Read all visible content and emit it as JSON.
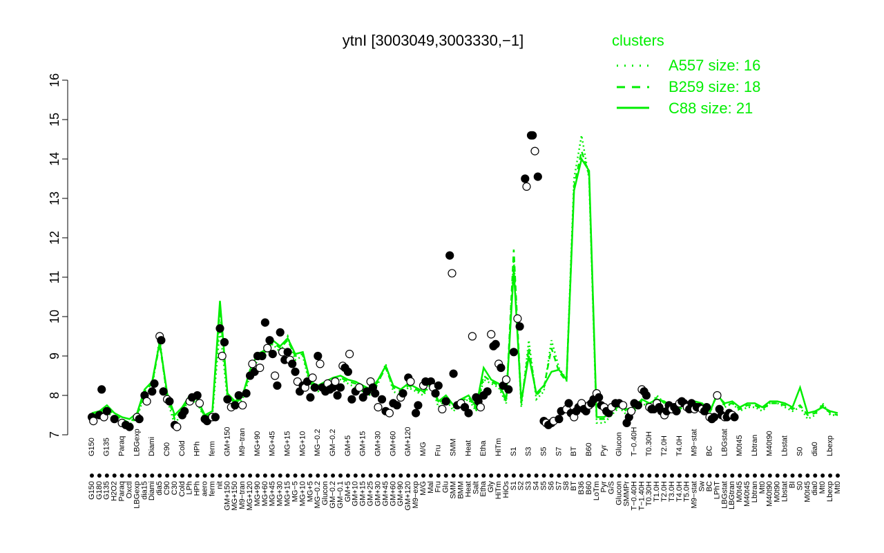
{
  "chart_data": {
    "type": "line",
    "title": "ytnI [3003049,3003330,−1]",
    "xlabel": "",
    "ylabel": "",
    "ylim": [
      7,
      16
    ],
    "yticks": [
      7,
      8,
      9,
      10,
      11,
      12,
      13,
      14,
      15,
      16
    ],
    "grid": false,
    "legend": {
      "title": "clusters",
      "placement": "top-right",
      "entries": [
        {
          "label": "A557 size: 16",
          "style": "dotted"
        },
        {
          "label": "B259 size: 18",
          "style": "dashed"
        },
        {
          "label": "C88 size: 21",
          "style": "solid"
        }
      ]
    },
    "line_color": "#00ee00",
    "x_tick_labels": [
      "G150",
      "G180",
      "G135",
      "H2O2",
      "Paraq",
      "Oxctl",
      "LBGexp",
      "dia15",
      "Diami",
      "dia5",
      "C90",
      "C30",
      "Cold",
      "LPh",
      "HPh",
      "aero",
      "ferm",
      "nit",
      "GM+150",
      "MG+150",
      "M9−tran",
      "MG+120",
      "MG+90",
      "MG+60",
      "MG+45",
      "MG+30",
      "MG+15",
      "MG−5",
      "MG+10",
      "MG+5",
      "MG−0.2",
      "Glucon",
      "GM−0.2",
      "GM−0.1",
      "GM+5",
      "GM+10",
      "GM+15",
      "GM+25",
      "GM+30",
      "GM+45",
      "GM+60",
      "GM+90",
      "GM+120",
      "M9−exp",
      "M/G",
      "Mal",
      "Fru",
      "Glu",
      "SMM",
      "BMM",
      "Heat",
      "Salt",
      "Etha",
      "Gly",
      "HiTm",
      "HiOs",
      "S1",
      "S2",
      "S3",
      "S4",
      "S5",
      "S6",
      "S7",
      "S8",
      "BT",
      "B36",
      "B60",
      "LoTm",
      "Pyr",
      "G/S",
      "Glucon",
      "SMMPr",
      "T−0.40H",
      "T−1.40H",
      "T0.30H",
      "T1.0H",
      "T2.0H",
      "T3.0H",
      "T4.0H",
      "T5.0H",
      "M9−stat",
      "Sw",
      "BC",
      "LPhT",
      "LBGstat",
      "LBGtran",
      "M0t45",
      "M40t45",
      "Lbtran",
      "Mt0",
      "M40t90",
      "M0t90",
      "Lbstat",
      "BI",
      "S0",
      "M0t45",
      "dia0",
      "Mt0",
      "Lbexp",
      "Mt0"
    ],
    "x": [
      1,
      2,
      3,
      4,
      5,
      6,
      7,
      8,
      9,
      10,
      11,
      12,
      13,
      14,
      15,
      16,
      17,
      18,
      19,
      20,
      21,
      22,
      23,
      24,
      25,
      26,
      27,
      28,
      29,
      30,
      31,
      32,
      33,
      34,
      35,
      36,
      37,
      38,
      39,
      40,
      41,
      42,
      43,
      44,
      45,
      46,
      47,
      48,
      49,
      50,
      51,
      52,
      53,
      54,
      55,
      56,
      57,
      58,
      59,
      60,
      61,
      62,
      63,
      64,
      65,
      66,
      67,
      68,
      69,
      70,
      71,
      72,
      73,
      74,
      75,
      76,
      77,
      78,
      79,
      80,
      81,
      82,
      83,
      84,
      85,
      86,
      87,
      88,
      89,
      90,
      91,
      92,
      93,
      94,
      95,
      96,
      97,
      98,
      99,
      100
    ],
    "series": [
      {
        "values": [
          7.4,
          7.5,
          7.6,
          7.4,
          7.3,
          7.25,
          7.45,
          8.0,
          8.2,
          9.45,
          7.9,
          7.25,
          7.6,
          7.9,
          7.8,
          7.4,
          7.5,
          9.7,
          7.9,
          7.7,
          7.9,
          8.5,
          8.9,
          9.0,
          9.3,
          9.1,
          9.5,
          8.9,
          9.0,
          8.2,
          8.1,
          8.2,
          8.3,
          8.4,
          8.3,
          8.2,
          8.1,
          8.0,
          8.3,
          8.8,
          8.1,
          8.0,
          8.2,
          8.1,
          8.0,
          8.3,
          7.7,
          7.9,
          7.6,
          7.8,
          7.9,
          7.6,
          8.4,
          8.3,
          8.2,
          7.8,
          11.5,
          7.7,
          9.4,
          7.9,
          8.1,
          9.4,
          8.7,
          8.4,
          13.5,
          14.6,
          13.5,
          7.3,
          7.3,
          7.5,
          7.7,
          7.5,
          7.6,
          7.8,
          7.7,
          8.0,
          7.8,
          7.6,
          7.6,
          7.7,
          7.8,
          7.7,
          7.5,
          8.1,
          7.7,
          7.8,
          7.6,
          7.7,
          7.7,
          7.6,
          7.8,
          7.8,
          7.7,
          7.6,
          7.7,
          7.4,
          7.5,
          7.8,
          7.5,
          7.5
        ]
      },
      {
        "values": [
          7.5,
          7.55,
          7.7,
          7.5,
          7.4,
          7.3,
          7.5,
          8.1,
          8.3,
          9.3,
          8.0,
          7.4,
          7.65,
          7.95,
          7.85,
          7.45,
          7.55,
          10.2,
          8.0,
          7.8,
          7.95,
          8.6,
          9.0,
          9.1,
          9.35,
          9.2,
          9.4,
          9.0,
          9.05,
          8.3,
          8.2,
          8.3,
          8.4,
          8.45,
          8.35,
          8.3,
          8.2,
          8.1,
          8.35,
          8.7,
          8.2,
          8.1,
          8.25,
          8.15,
          8.05,
          8.35,
          7.8,
          7.95,
          7.7,
          7.85,
          7.95,
          7.65,
          8.5,
          8.35,
          8.25,
          7.85,
          11.7,
          7.8,
          9.2,
          8.0,
          8.2,
          9.2,
          8.6,
          8.35,
          13.3,
          14.2,
          13.6,
          7.4,
          7.4,
          7.55,
          7.75,
          7.6,
          7.65,
          7.85,
          7.75,
          7.95,
          7.8,
          7.65,
          7.65,
          7.75,
          7.8,
          7.75,
          7.55,
          8.05,
          7.75,
          7.8,
          7.65,
          7.75,
          7.75,
          7.65,
          7.8,
          7.8,
          7.75,
          7.65,
          7.75,
          7.5,
          7.55,
          7.75,
          7.55,
          7.5
        ]
      },
      {
        "values": [
          7.55,
          7.6,
          7.75,
          7.55,
          7.45,
          7.4,
          7.55,
          8.15,
          8.35,
          9.35,
          8.05,
          7.5,
          7.7,
          8.0,
          7.9,
          7.5,
          7.6,
          10.4,
          8.05,
          7.85,
          8.0,
          8.65,
          9.05,
          9.15,
          9.4,
          9.25,
          9.45,
          9.05,
          9.1,
          8.35,
          8.25,
          8.35,
          8.45,
          8.5,
          8.4,
          8.35,
          8.25,
          8.15,
          8.4,
          8.75,
          8.25,
          8.15,
          8.3,
          8.2,
          8.1,
          8.4,
          7.85,
          8.0,
          7.75,
          7.9,
          8.0,
          7.7,
          8.7,
          8.4,
          8.3,
          7.9,
          11.2,
          7.85,
          9.0,
          8.05,
          8.25,
          8.6,
          8.65,
          8.4,
          13.2,
          14.0,
          13.7,
          7.45,
          7.45,
          7.6,
          7.8,
          7.65,
          7.7,
          7.9,
          7.8,
          7.9,
          7.85,
          7.7,
          7.7,
          7.8,
          7.85,
          7.8,
          7.6,
          8.0,
          7.8,
          7.85,
          7.7,
          7.8,
          7.8,
          7.7,
          7.85,
          7.85,
          7.8,
          7.7,
          8.2,
          7.55,
          7.6,
          7.7,
          7.6,
          7.55
        ]
      }
    ],
    "points": [
      {
        "x": 1,
        "y": 7.45
      },
      {
        "x": 1.2,
        "y": 7.35
      },
      {
        "x": 2,
        "y": 7.5
      },
      {
        "x": 2.3,
        "y": 8.15
      },
      {
        "x": 2.6,
        "y": 7.45
      },
      {
        "x": 3,
        "y": 7.6
      },
      {
        "x": 4,
        "y": 7.4
      },
      {
        "x": 5,
        "y": 7.3
      },
      {
        "x": 5.5,
        "y": 7.25
      },
      {
        "x": 6,
        "y": 7.2
      },
      {
        "x": 7,
        "y": 7.45
      },
      {
        "x": 7.3,
        "y": 7.4
      },
      {
        "x": 8,
        "y": 8.0
      },
      {
        "x": 8.3,
        "y": 7.85
      },
      {
        "x": 9,
        "y": 8.1
      },
      {
        "x": 9.3,
        "y": 8.3
      },
      {
        "x": 10,
        "y": 9.5
      },
      {
        "x": 10.2,
        "y": 9.4
      },
      {
        "x": 10.5,
        "y": 8.1
      },
      {
        "x": 11,
        "y": 7.9
      },
      {
        "x": 11.3,
        "y": 7.85
      },
      {
        "x": 12,
        "y": 7.25
      },
      {
        "x": 12.3,
        "y": 7.2
      },
      {
        "x": 13,
        "y": 7.5
      },
      {
        "x": 13.3,
        "y": 7.6
      },
      {
        "x": 14,
        "y": 7.85
      },
      {
        "x": 14.3,
        "y": 7.95
      },
      {
        "x": 15,
        "y": 8.0
      },
      {
        "x": 15.3,
        "y": 7.8
      },
      {
        "x": 16,
        "y": 7.4
      },
      {
        "x": 16.3,
        "y": 7.35
      },
      {
        "x": 17,
        "y": 7.45
      },
      {
        "x": 17.4,
        "y": 7.45
      },
      {
        "x": 18,
        "y": 9.7
      },
      {
        "x": 18.3,
        "y": 9.0
      },
      {
        "x": 18.6,
        "y": 9.35
      },
      {
        "x": 19,
        "y": 7.9
      },
      {
        "x": 19.5,
        "y": 7.7
      },
      {
        "x": 20,
        "y": 7.75
      },
      {
        "x": 20.5,
        "y": 8.0
      },
      {
        "x": 21,
        "y": 7.75
      },
      {
        "x": 21.5,
        "y": 8.05
      },
      {
        "x": 22,
        "y": 8.5
      },
      {
        "x": 22.3,
        "y": 8.8
      },
      {
        "x": 22.6,
        "y": 8.6
      },
      {
        "x": 23,
        "y": 9.0
      },
      {
        "x": 23.3,
        "y": 8.7
      },
      {
        "x": 23.6,
        "y": 9.0
      },
      {
        "x": 24,
        "y": 9.85
      },
      {
        "x": 24.3,
        "y": 9.2
      },
      {
        "x": 24.6,
        "y": 9.4
      },
      {
        "x": 25,
        "y": 9.05
      },
      {
        "x": 25.3,
        "y": 8.5
      },
      {
        "x": 25.6,
        "y": 8.25
      },
      {
        "x": 26,
        "y": 9.6
      },
      {
        "x": 26.3,
        "y": 9.1
      },
      {
        "x": 26.6,
        "y": 8.9
      },
      {
        "x": 27,
        "y": 9.1
      },
      {
        "x": 27.3,
        "y": 8.9
      },
      {
        "x": 27.6,
        "y": 8.8
      },
      {
        "x": 28,
        "y": 8.6
      },
      {
        "x": 28.3,
        "y": 8.35
      },
      {
        "x": 28.6,
        "y": 8.1
      },
      {
        "x": 29,
        "y": 8.25
      },
      {
        "x": 29.3,
        "y": 8.2
      },
      {
        "x": 29.6,
        "y": 8.35
      },
      {
        "x": 30,
        "y": 7.95
      },
      {
        "x": 30.3,
        "y": 8.45
      },
      {
        "x": 30.6,
        "y": 8.2
      },
      {
        "x": 31,
        "y": 9.0
      },
      {
        "x": 31.3,
        "y": 8.8
      },
      {
        "x": 31.6,
        "y": 8.2
      },
      {
        "x": 32,
        "y": 8.1
      },
      {
        "x": 32.3,
        "y": 8.3
      },
      {
        "x": 32.6,
        "y": 8.15
      },
      {
        "x": 33,
        "y": 8.2
      },
      {
        "x": 33.3,
        "y": 8.35
      },
      {
        "x": 33.6,
        "y": 8.0
      },
      {
        "x": 34,
        "y": 8.2
      },
      {
        "x": 34.3,
        "y": 8.75
      },
      {
        "x": 34.6,
        "y": 8.7
      },
      {
        "x": 35,
        "y": 8.6
      },
      {
        "x": 35.2,
        "y": 9.05
      },
      {
        "x": 35.5,
        "y": 7.9
      },
      {
        "x": 36,
        "y": 8.1
      },
      {
        "x": 36.5,
        "y": 8.2
      },
      {
        "x": 37,
        "y": 7.95
      },
      {
        "x": 37.5,
        "y": 8.1
      },
      {
        "x": 38,
        "y": 8.35
      },
      {
        "x": 38.3,
        "y": 8.2
      },
      {
        "x": 38.6,
        "y": 8.05
      },
      {
        "x": 39,
        "y": 7.7
      },
      {
        "x": 39.5,
        "y": 7.9
      },
      {
        "x": 40,
        "y": 7.6
      },
      {
        "x": 40.5,
        "y": 7.55
      },
      {
        "x": 41,
        "y": 7.8
      },
      {
        "x": 41.5,
        "y": 7.75
      },
      {
        "x": 42,
        "y": 7.95
      },
      {
        "x": 42.3,
        "y": 8.05
      },
      {
        "x": 43,
        "y": 8.45
      },
      {
        "x": 43.3,
        "y": 8.35
      },
      {
        "x": 44,
        "y": 7.55
      },
      {
        "x": 44.3,
        "y": 7.75
      },
      {
        "x": 45,
        "y": 8.25
      },
      {
        "x": 45.3,
        "y": 8.35
      },
      {
        "x": 46,
        "y": 8.35
      },
      {
        "x": 46.3,
        "y": 8.2
      },
      {
        "x": 46.6,
        "y": 8.05
      },
      {
        "x": 47,
        "y": 8.25
      },
      {
        "x": 47.5,
        "y": 7.65
      },
      {
        "x": 48,
        "y": 7.85
      },
      {
        "x": 48.5,
        "y": 11.55
      },
      {
        "x": 48.8,
        "y": 11.1
      },
      {
        "x": 49,
        "y": 8.55
      },
      {
        "x": 49.5,
        "y": 7.75
      },
      {
        "x": 50,
        "y": 7.8
      },
      {
        "x": 50.5,
        "y": 7.7
      },
      {
        "x": 51,
        "y": 7.55
      },
      {
        "x": 51.5,
        "y": 9.5
      },
      {
        "x": 52,
        "y": 7.95
      },
      {
        "x": 52.3,
        "y": 7.85
      },
      {
        "x": 52.6,
        "y": 7.7
      },
      {
        "x": 53,
        "y": 8.0
      },
      {
        "x": 53.5,
        "y": 8.1
      },
      {
        "x": 54,
        "y": 9.55
      },
      {
        "x": 54.3,
        "y": 9.25
      },
      {
        "x": 54.6,
        "y": 9.3
      },
      {
        "x": 55,
        "y": 8.8
      },
      {
        "x": 55.3,
        "y": 8.7
      },
      {
        "x": 55.6,
        "y": 8.25
      },
      {
        "x": 56,
        "y": 8.4
      },
      {
        "x": 56.3,
        "y": 8.15
      },
      {
        "x": 57,
        "y": 9.1
      },
      {
        "x": 57.5,
        "y": 9.95
      },
      {
        "x": 57.8,
        "y": 9.75
      },
      {
        "x": 58.5,
        "y": 13.5
      },
      {
        "x": 58.7,
        "y": 13.3
      },
      {
        "x": 59.3,
        "y": 14.6
      },
      {
        "x": 59.5,
        "y": 14.6
      },
      {
        "x": 59.8,
        "y": 14.2
      },
      {
        "x": 60.2,
        "y": 13.55
      },
      {
        "x": 61,
        "y": 7.35
      },
      {
        "x": 61.3,
        "y": 7.3
      },
      {
        "x": 61.6,
        "y": 7.25
      },
      {
        "x": 62,
        "y": 7.3
      },
      {
        "x": 62.3,
        "y": 7.35
      },
      {
        "x": 63,
        "y": 7.4
      },
      {
        "x": 63.3,
        "y": 7.6
      },
      {
        "x": 64,
        "y": 7.65
      },
      {
        "x": 64.3,
        "y": 7.8
      },
      {
        "x": 64.6,
        "y": 7.55
      },
      {
        "x": 65,
        "y": 7.45
      },
      {
        "x": 65.3,
        "y": 7.6
      },
      {
        "x": 65.6,
        "y": 7.7
      },
      {
        "x": 66,
        "y": 7.8
      },
      {
        "x": 66.3,
        "y": 7.65
      },
      {
        "x": 66.6,
        "y": 7.6
      },
      {
        "x": 67,
        "y": 7.75
      },
      {
        "x": 67.3,
        "y": 7.8
      },
      {
        "x": 67.6,
        "y": 7.9
      },
      {
        "x": 68,
        "y": 8.05
      },
      {
        "x": 68.3,
        "y": 7.95
      },
      {
        "x": 68.6,
        "y": 7.75
      },
      {
        "x": 69,
        "y": 7.7
      },
      {
        "x": 69.3,
        "y": 7.6
      },
      {
        "x": 69.6,
        "y": 7.55
      },
      {
        "x": 70,
        "y": 7.7
      },
      {
        "x": 70.5,
        "y": 7.8
      },
      {
        "x": 71,
        "y": 7.8
      },
      {
        "x": 71.5,
        "y": 7.75
      },
      {
        "x": 72,
        "y": 7.3
      },
      {
        "x": 72.3,
        "y": 7.45
      },
      {
        "x": 72.6,
        "y": 7.6
      },
      {
        "x": 73,
        "y": 7.8
      },
      {
        "x": 73.5,
        "y": 7.75
      },
      {
        "x": 74,
        "y": 8.15
      },
      {
        "x": 74.3,
        "y": 8.1
      },
      {
        "x": 74.6,
        "y": 8.0
      },
      {
        "x": 75,
        "y": 7.7
      },
      {
        "x": 75.3,
        "y": 7.65
      },
      {
        "x": 75.6,
        "y": 7.65
      },
      {
        "x": 76,
        "y": 7.8
      },
      {
        "x": 76.3,
        "y": 7.7
      },
      {
        "x": 76.6,
        "y": 7.6
      },
      {
        "x": 77,
        "y": 7.5
      },
      {
        "x": 77.3,
        "y": 7.6
      },
      {
        "x": 77.6,
        "y": 7.75
      },
      {
        "x": 78,
        "y": 7.65
      },
      {
        "x": 78.3,
        "y": 7.7
      },
      {
        "x": 78.6,
        "y": 7.6
      },
      {
        "x": 79,
        "y": 7.8
      },
      {
        "x": 79.3,
        "y": 7.85
      },
      {
        "x": 79.6,
        "y": 7.8
      },
      {
        "x": 80,
        "y": 7.7
      },
      {
        "x": 80.3,
        "y": 7.65
      },
      {
        "x": 80.6,
        "y": 7.8
      },
      {
        "x": 81,
        "y": 7.65
      },
      {
        "x": 81.3,
        "y": 7.7
      },
      {
        "x": 81.6,
        "y": 7.7
      },
      {
        "x": 82,
        "y": 7.65
      },
      {
        "x": 82.3,
        "y": 7.6
      },
      {
        "x": 82.6,
        "y": 7.7
      },
      {
        "x": 83,
        "y": 7.45
      },
      {
        "x": 83.3,
        "y": 7.4
      },
      {
        "x": 83.6,
        "y": 7.45
      },
      {
        "x": 84,
        "y": 8.0
      },
      {
        "x": 84.3,
        "y": 7.65
      },
      {
        "x": 84.6,
        "y": 7.5
      },
      {
        "x": 85,
        "y": 7.45
      },
      {
        "x": 85.3,
        "y": 7.45
      },
      {
        "x": 85.6,
        "y": 7.55
      },
      {
        "x": 86,
        "y": 7.5
      },
      {
        "x": 86.3,
        "y": 7.45
      }
    ]
  }
}
